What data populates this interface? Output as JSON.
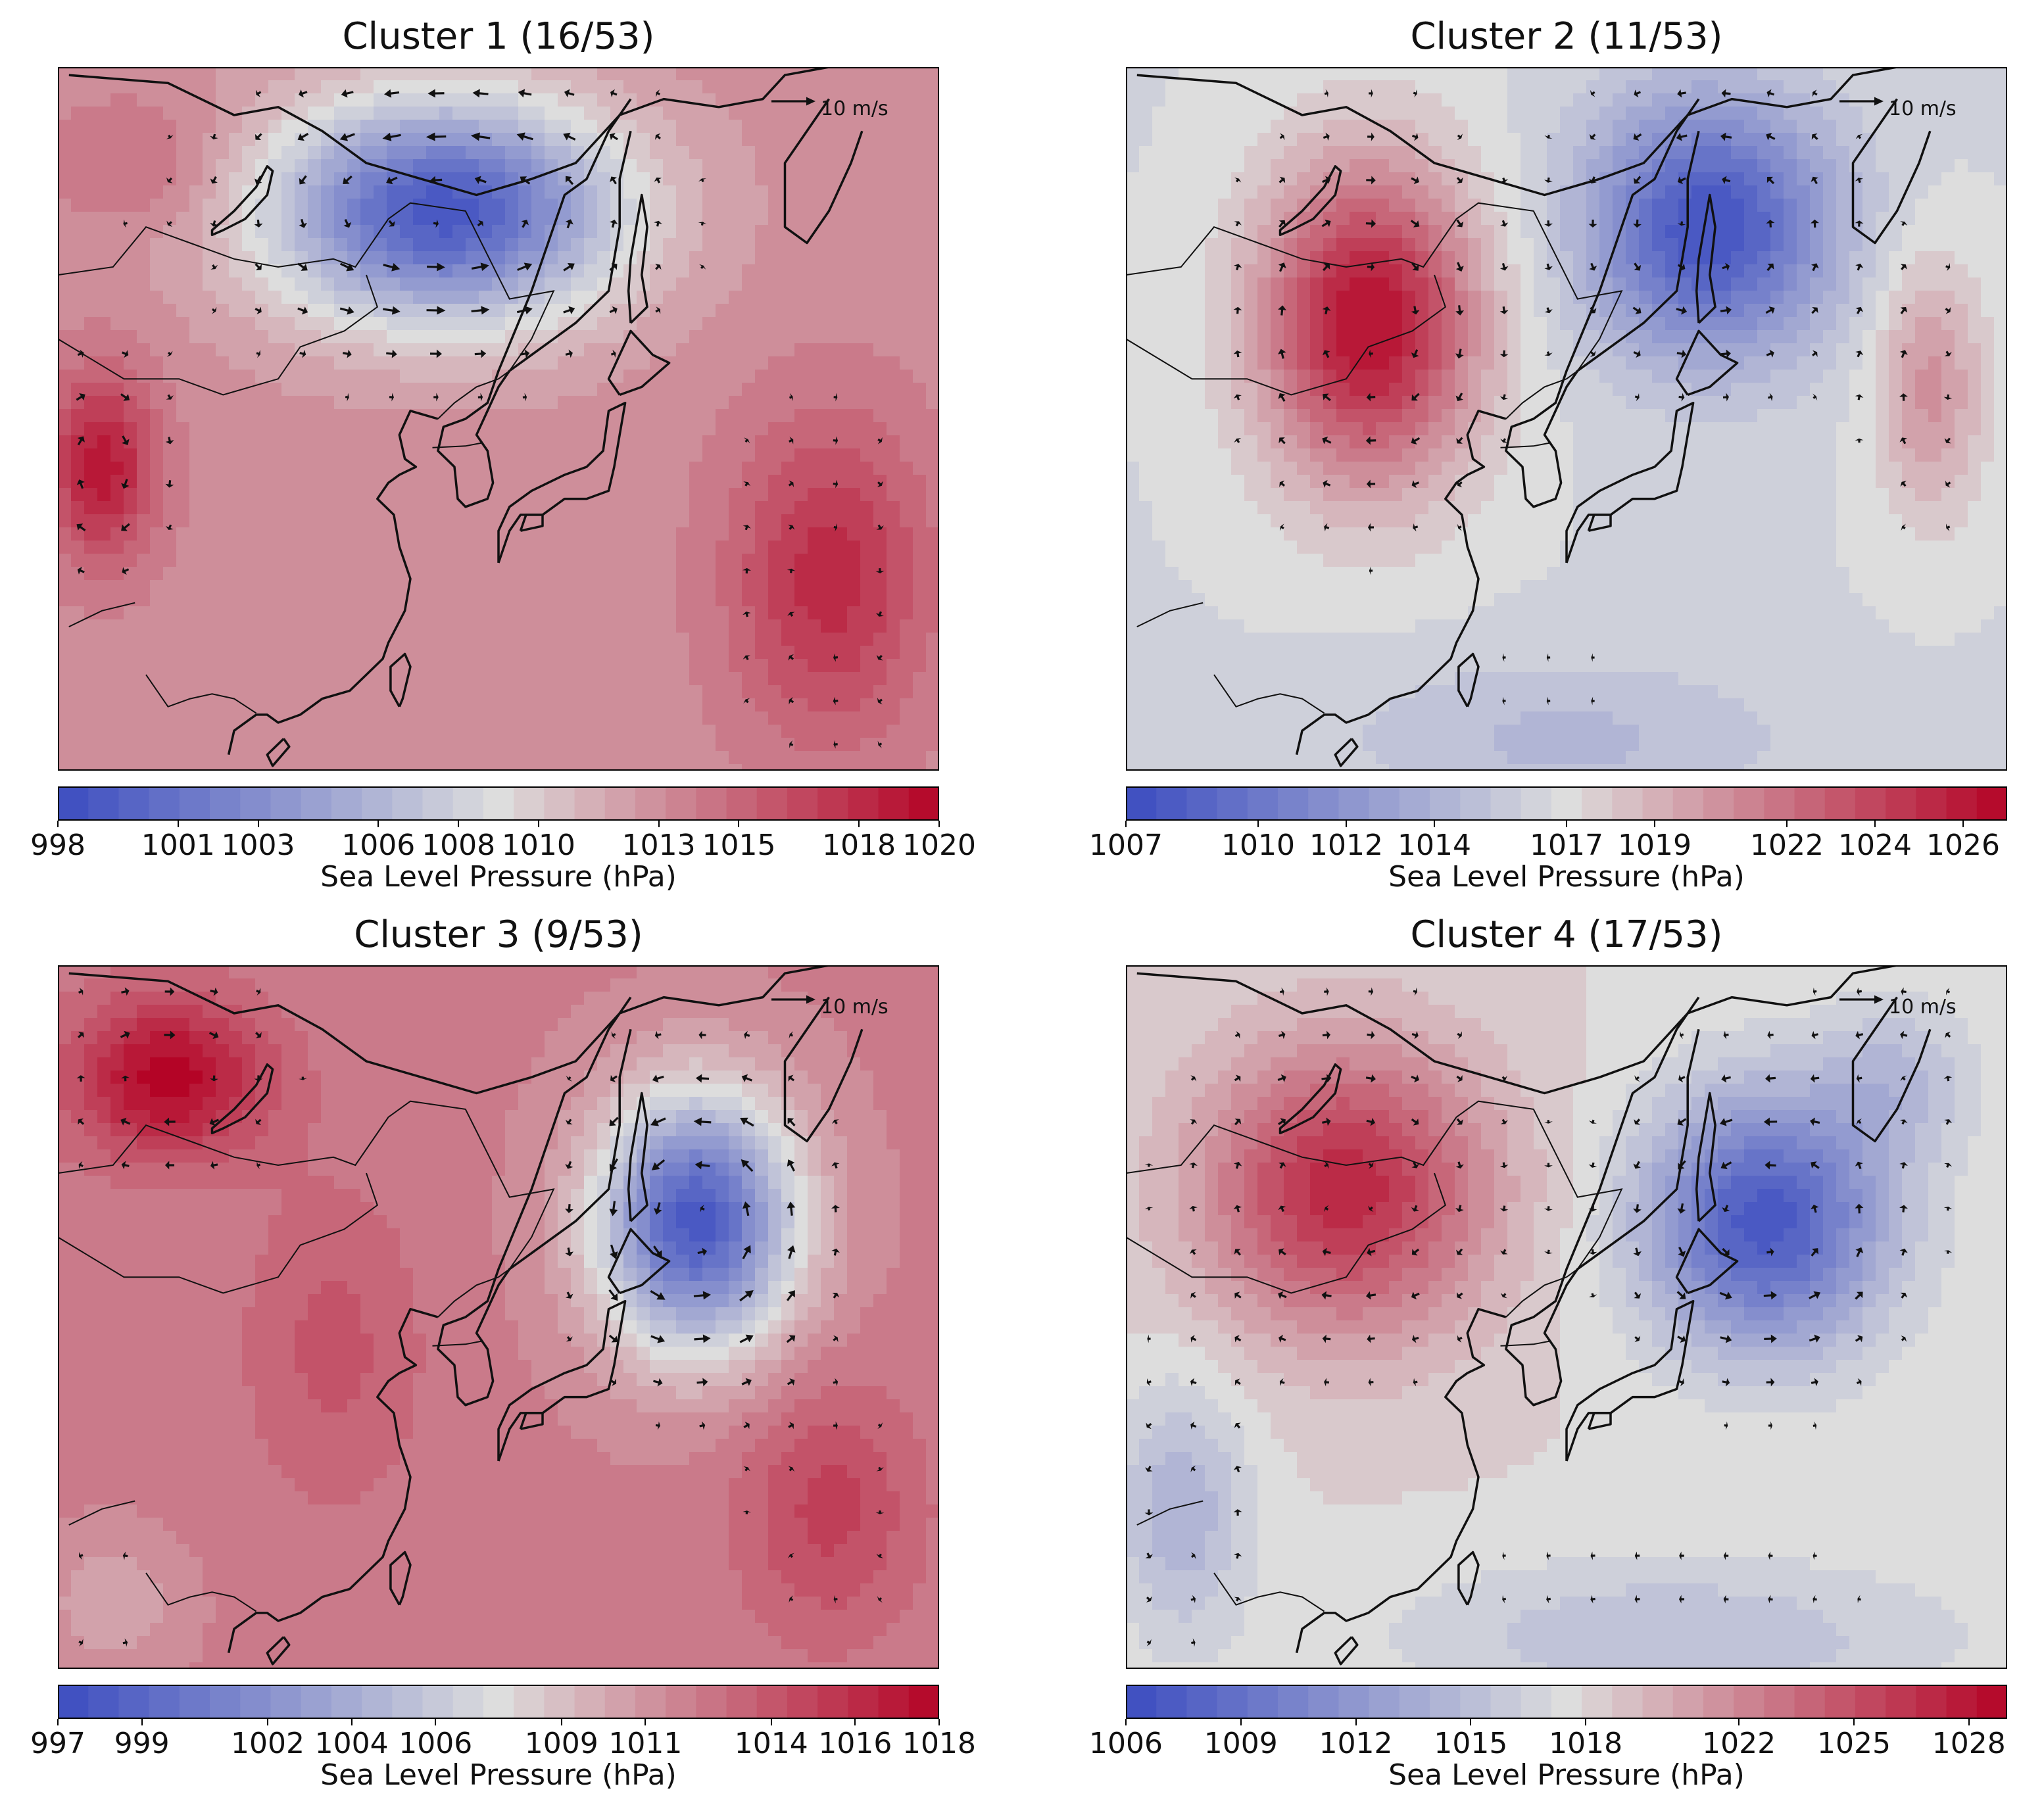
{
  "figure": {
    "panels": [
      {
        "title": "Cluster 1 (16/53)",
        "scale_label": "10 m/s",
        "colorbar": {
          "label": "Sea Level Pressure (hPa)",
          "min": 998,
          "max": 1020,
          "ticks": [
            "998",
            "1001",
            "1003",
            "1006",
            "1008",
            "1010",
            "1013",
            "1015",
            "1018",
            "1020"
          ]
        },
        "field": {
          "base": 1013,
          "centers": [
            {
              "lon": 125,
              "lat": 53,
              "amp": -14,
              "rlon": 16,
              "rlat": 7
            },
            {
              "lon": 94,
              "lat": 37,
              "amp": 6,
              "rlon": 5,
              "rlat": 6
            },
            {
              "lon": 160,
              "lat": 30,
              "amp": 5,
              "rlon": 9,
              "rlat": 10
            },
            {
              "lon": 98,
              "lat": 56,
              "amp": 2,
              "rlon": 8,
              "rlat": 4
            }
          ]
        }
      },
      {
        "title": "Cluster 2 (11/53)",
        "scale_label": "10 m/s",
        "colorbar": {
          "label": "Sea Level Pressure (hPa)",
          "min": 1007,
          "max": 1027,
          "ticks": [
            "1007",
            "1010",
            "1012",
            "1014",
            "1017",
            "1019",
            "1022",
            "1024",
            "1026"
          ]
        },
        "field": {
          "base": 1016.5,
          "centers": [
            {
              "lon": 112,
              "lat": 46,
              "amp": 10,
              "rlon": 10,
              "rlat": 10
            },
            {
              "lon": 143,
              "lat": 52,
              "amp": -9,
              "rlon": 11,
              "rlat": 8
            },
            {
              "lon": 163,
              "lat": 42,
              "amp": 4,
              "rlon": 5,
              "rlat": 8
            },
            {
              "lon": 130,
              "lat": 20,
              "amp": -2,
              "rlon": 20,
              "rlat": 5
            }
          ]
        }
      },
      {
        "title": "Cluster 3 (9/53)",
        "scale_label": "10 m/s",
        "colorbar": {
          "label": "Sea Level Pressure (hPa)",
          "min": 997,
          "max": 1018,
          "ticks": [
            "997",
            "999",
            "1002",
            "1004",
            "1006",
            "1009",
            "1011",
            "1014",
            "1016",
            "1018"
          ]
        },
        "field": {
          "base": 1012,
          "centers": [
            {
              "lon": 100,
              "lat": 55,
              "amp": 6,
              "rlon": 9,
              "rlat": 5
            },
            {
              "lon": 148,
              "lat": 46,
              "amp": -14,
              "rlon": 9,
              "rlat": 8
            },
            {
              "lon": 115,
              "lat": 38,
              "amp": 2,
              "rlon": 8,
              "rlat": 10
            },
            {
              "lon": 160,
              "lat": 28,
              "amp": 3,
              "rlon": 8,
              "rlat": 8
            },
            {
              "lon": 95,
              "lat": 22,
              "amp": -2,
              "rlon": 6,
              "rlat": 4
            }
          ]
        }
      },
      {
        "title": "Cluster 4 (17/53)",
        "scale_label": "10 m/s",
        "colorbar": {
          "label": "Sea Level Pressure (hPa)",
          "min": 1006,
          "max": 1029,
          "ticks": [
            "1006",
            "1009",
            "1012",
            "1015",
            "1018",
            "1022",
            "1025",
            "1028"
          ]
        },
        "field": {
          "base": 1018,
          "centers": [
            {
              "lon": 110,
              "lat": 48,
              "amp": 9,
              "rlon": 13,
              "rlat": 9
            },
            {
              "lon": 148,
              "lat": 46,
              "amp": -11,
              "rlon": 11,
              "rlat": 8
            },
            {
              "lon": 95,
              "lat": 28,
              "amp": -4,
              "rlon": 6,
              "rlat": 8
            },
            {
              "lon": 160,
              "lat": 55,
              "amp": -3,
              "rlon": 7,
              "rlat": 5
            },
            {
              "lon": 140,
              "lat": 20,
              "amp": -3,
              "rlon": 25,
              "rlat": 5
            }
          ]
        }
      }
    ]
  },
  "colors": {
    "low": "#3b4cc0",
    "mid": "#dddddd",
    "high": "#b40426",
    "coast": "#111111",
    "arrow": "#111111"
  }
}
